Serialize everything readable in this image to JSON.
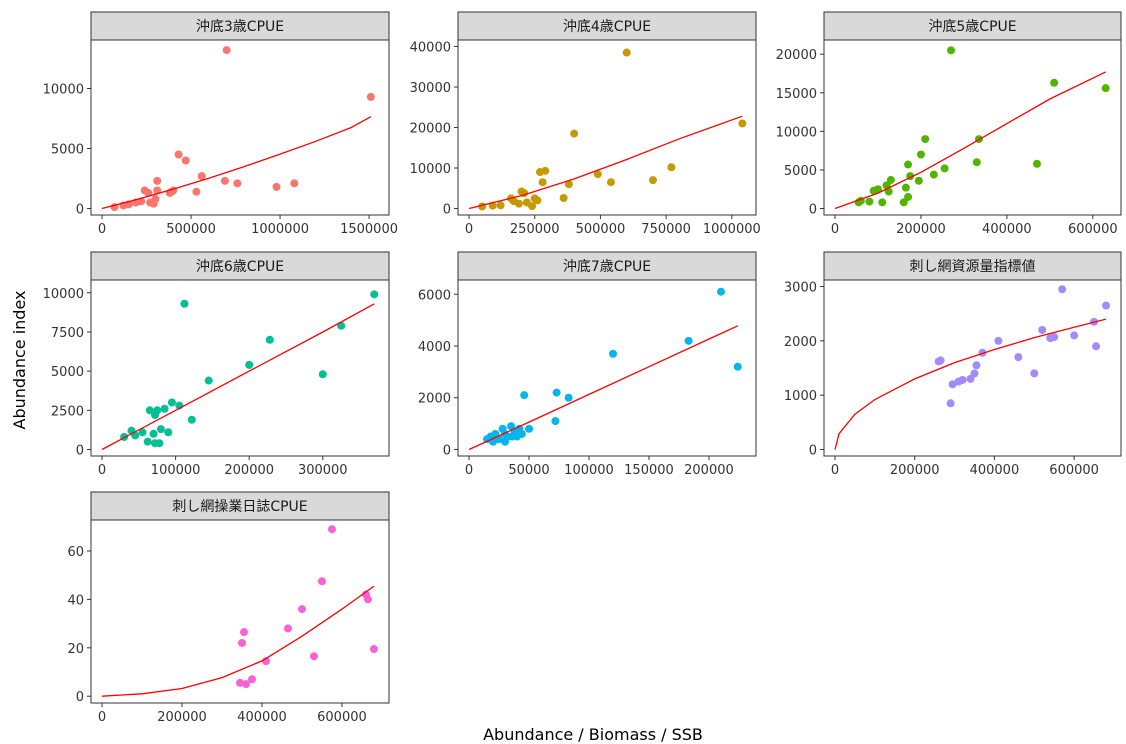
{
  "figure": {
    "xlabel": "Abundance / Biomass / SSB",
    "ylabel": "Abundance index"
  },
  "chart_data": [
    {
      "type": "scatter",
      "title": "沖底3歳CPUE",
      "color": "#F8766D",
      "fit_color": "#FF0000",
      "xlim": [
        0,
        1550000
      ],
      "ylim": [
        0,
        13500
      ],
      "x_ticks": [
        0,
        500000,
        1000000,
        1500000
      ],
      "x_tick_labels": [
        "0",
        "500000",
        "1000000",
        "1500000"
      ],
      "y_ticks": [
        0,
        5000,
        10000
      ],
      "y_tick_labels": [
        "0",
        "5000",
        "10000"
      ],
      "points": [
        [
          70000,
          120
        ],
        [
          120000,
          250
        ],
        [
          150000,
          350
        ],
        [
          190000,
          500
        ],
        [
          220000,
          600
        ],
        [
          240000,
          1500
        ],
        [
          260000,
          1300
        ],
        [
          270000,
          500
        ],
        [
          290000,
          400
        ],
        [
          300000,
          800
        ],
        [
          310000,
          1500
        ],
        [
          310000,
          2300
        ],
        [
          380000,
          1300
        ],
        [
          390000,
          1400
        ],
        [
          400000,
          1500
        ],
        [
          430000,
          4500
        ],
        [
          470000,
          4000
        ],
        [
          530000,
          1400
        ],
        [
          560000,
          2700
        ],
        [
          690000,
          2300
        ],
        [
          700000,
          13200
        ],
        [
          760000,
          2100
        ],
        [
          980000,
          1800
        ],
        [
          1080000,
          2100
        ],
        [
          1510000,
          9300
        ]
      ],
      "fit": [
        [
          0,
          0
        ],
        [
          200000,
          770
        ],
        [
          400000,
          1620
        ],
        [
          600000,
          2520
        ],
        [
          800000,
          3500
        ],
        [
          1000000,
          4530
        ],
        [
          1200000,
          5600
        ],
        [
          1400000,
          6750
        ],
        [
          1510000,
          7650
        ]
      ]
    },
    {
      "type": "scatter",
      "title": "沖底4歳CPUE",
      "color": "#C49A00",
      "fit_color": "#FF0000",
      "xlim": [
        0,
        1050000
      ],
      "ylim": [
        0,
        40000
      ],
      "x_ticks": [
        0,
        250000,
        500000,
        750000,
        1000000
      ],
      "x_tick_labels": [
        "0",
        "250000",
        "500000",
        "750000",
        "1000000"
      ],
      "y_ticks": [
        0,
        10000,
        20000,
        30000,
        40000
      ],
      "y_tick_labels": [
        "0",
        "10000",
        "20000",
        "30000",
        "40000"
      ],
      "points": [
        [
          50000,
          500
        ],
        [
          90000,
          700
        ],
        [
          120000,
          800
        ],
        [
          160000,
          2500
        ],
        [
          170000,
          1800
        ],
        [
          190000,
          1200
        ],
        [
          200000,
          4200
        ],
        [
          210000,
          3800
        ],
        [
          220000,
          1500
        ],
        [
          240000,
          600
        ],
        [
          250000,
          2500
        ],
        [
          260000,
          2000
        ],
        [
          270000,
          9000
        ],
        [
          280000,
          6500
        ],
        [
          290000,
          9300
        ],
        [
          360000,
          2600
        ],
        [
          380000,
          6000
        ],
        [
          400000,
          18500
        ],
        [
          490000,
          8500
        ],
        [
          540000,
          6500
        ],
        [
          600000,
          38500
        ],
        [
          700000,
          7000
        ],
        [
          770000,
          10200
        ],
        [
          1040000,
          21000
        ]
      ],
      "fit": [
        [
          0,
          0
        ],
        [
          200000,
          3200
        ],
        [
          400000,
          7300
        ],
        [
          600000,
          12100
        ],
        [
          800000,
          17200
        ],
        [
          1040000,
          22800
        ]
      ]
    },
    {
      "type": "scatter",
      "title": "沖底5歳CPUE",
      "color": "#53B400",
      "fit_color": "#FF0000",
      "xlim": [
        0,
        640000
      ],
      "ylim": [
        0,
        21000
      ],
      "x_ticks": [
        0,
        200000,
        400000,
        600000
      ],
      "x_tick_labels": [
        "0",
        "200000",
        "400000",
        "600000"
      ],
      "y_ticks": [
        0,
        5000,
        10000,
        15000,
        20000
      ],
      "y_tick_labels": [
        "0",
        "5000",
        "10000",
        "15000",
        "20000"
      ],
      "points": [
        [
          55000,
          800
        ],
        [
          60000,
          1000
        ],
        [
          80000,
          900
        ],
        [
          90000,
          2300
        ],
        [
          100000,
          2500
        ],
        [
          110000,
          800
        ],
        [
          120000,
          3000
        ],
        [
          125000,
          2200
        ],
        [
          130000,
          3700
        ],
        [
          160000,
          800
        ],
        [
          165000,
          2700
        ],
        [
          170000,
          1500
        ],
        [
          170000,
          5700
        ],
        [
          175000,
          4200
        ],
        [
          195000,
          3600
        ],
        [
          200000,
          7000
        ],
        [
          210000,
          9000
        ],
        [
          230000,
          4400
        ],
        [
          255000,
          5200
        ],
        [
          270000,
          20500
        ],
        [
          330000,
          6000
        ],
        [
          335000,
          9000
        ],
        [
          470000,
          5800
        ],
        [
          510000,
          16300
        ],
        [
          630000,
          15600
        ]
      ],
      "fit": [
        [
          0,
          0
        ],
        [
          100000,
          2000
        ],
        [
          200000,
          4700
        ],
        [
          300000,
          7800
        ],
        [
          400000,
          11000
        ],
        [
          500000,
          14200
        ],
        [
          630000,
          17700
        ]
      ]
    },
    {
      "type": "scatter",
      "title": "沖底6歳CPUE",
      "color": "#00C094",
      "fit_color": "#FF0000",
      "xlim": [
        0,
        375000
      ],
      "ylim": [
        0,
        10400
      ],
      "x_ticks": [
        0,
        100000,
        200000,
        300000
      ],
      "x_tick_labels": [
        "0",
        "100000",
        "200000",
        "300000"
      ],
      "y_ticks": [
        0,
        2500,
        5000,
        7500,
        10000
      ],
      "y_tick_labels": [
        "0",
        "2500",
        "5000",
        "7500",
        "10000"
      ],
      "points": [
        [
          30000,
          800
        ],
        [
          40000,
          1200
        ],
        [
          45000,
          900
        ],
        [
          55000,
          1100
        ],
        [
          62000,
          500
        ],
        [
          65000,
          2500
        ],
        [
          70000,
          1000
        ],
        [
          72000,
          400
        ],
        [
          72000,
          2200
        ],
        [
          75000,
          2500
        ],
        [
          78000,
          400
        ],
        [
          80000,
          1300
        ],
        [
          85000,
          2600
        ],
        [
          90000,
          1100
        ],
        [
          95000,
          3000
        ],
        [
          105000,
          2800
        ],
        [
          112000,
          9300
        ],
        [
          122000,
          1900
        ],
        [
          145000,
          4400
        ],
        [
          200000,
          5400
        ],
        [
          228000,
          7000
        ],
        [
          300000,
          4800
        ],
        [
          325000,
          7900
        ],
        [
          370000,
          9900
        ]
      ],
      "fit": [
        [
          0,
          0
        ],
        [
          100000,
          2500
        ],
        [
          200000,
          5000
        ],
        [
          300000,
          7500
        ],
        [
          370000,
          9300
        ]
      ]
    },
    {
      "type": "scatter",
      "title": "沖底7歳CPUE",
      "color": "#00B6EB",
      "fit_color": "#FF0000",
      "xlim": [
        0,
        230000
      ],
      "ylim": [
        0,
        6300
      ],
      "x_ticks": [
        0,
        50000,
        100000,
        150000,
        200000
      ],
      "x_tick_labels": [
        "0",
        "50000",
        "100000",
        "150000",
        "200000"
      ],
      "y_ticks": [
        0,
        2000,
        4000,
        6000
      ],
      "y_tick_labels": [
        "0",
        "2000",
        "4000",
        "6000"
      ],
      "points": [
        [
          15000,
          400
        ],
        [
          18000,
          500
        ],
        [
          20000,
          300
        ],
        [
          22000,
          600
        ],
        [
          25000,
          400
        ],
        [
          28000,
          800
        ],
        [
          30000,
          300
        ],
        [
          30000,
          600
        ],
        [
          32000,
          500
        ],
        [
          35000,
          900
        ],
        [
          36000,
          500
        ],
        [
          38000,
          700
        ],
        [
          40000,
          500
        ],
        [
          42000,
          800
        ],
        [
          44000,
          600
        ],
        [
          46000,
          2100
        ],
        [
          50000,
          800
        ],
        [
          72000,
          1100
        ],
        [
          73000,
          2200
        ],
        [
          83000,
          2000
        ],
        [
          120000,
          3700
        ],
        [
          183000,
          4200
        ],
        [
          210000,
          6100
        ],
        [
          224000,
          3200
        ]
      ],
      "fit": [
        [
          0,
          0
        ],
        [
          50000,
          1060
        ],
        [
          100000,
          2130
        ],
        [
          150000,
          3200
        ],
        [
          200000,
          4270
        ],
        [
          224000,
          4780
        ]
      ]
    },
    {
      "type": "scatter",
      "title": "刺し網資源量指標値",
      "color": "#A58AFF",
      "fit_color": "#FF0000",
      "xlim": [
        0,
        690000
      ],
      "ylim": [
        0,
        3000
      ],
      "x_ticks": [
        0,
        200000,
        400000,
        600000
      ],
      "x_tick_labels": [
        "0",
        "200000",
        "400000",
        "600000"
      ],
      "y_ticks": [
        0,
        1000,
        2000,
        3000
      ],
      "y_tick_labels": [
        "0",
        "1000",
        "2000",
        "3000"
      ],
      "points": [
        [
          260000,
          1620
        ],
        [
          265000,
          1640
        ],
        [
          290000,
          850
        ],
        [
          295000,
          1200
        ],
        [
          310000,
          1250
        ],
        [
          320000,
          1280
        ],
        [
          340000,
          1300
        ],
        [
          350000,
          1400
        ],
        [
          355000,
          1550
        ],
        [
          370000,
          1780
        ],
        [
          410000,
          2000
        ],
        [
          460000,
          1700
        ],
        [
          500000,
          1400
        ],
        [
          520000,
          2200
        ],
        [
          540000,
          2050
        ],
        [
          550000,
          2070
        ],
        [
          570000,
          2950
        ],
        [
          600000,
          2100
        ],
        [
          650000,
          2350
        ],
        [
          655000,
          1900
        ],
        [
          680000,
          2650
        ]
      ],
      "fit": [
        [
          0,
          0
        ],
        [
          10000,
          290
        ],
        [
          50000,
          650
        ],
        [
          100000,
          920
        ],
        [
          200000,
          1300
        ],
        [
          300000,
          1600
        ],
        [
          400000,
          1840
        ],
        [
          500000,
          2060
        ],
        [
          600000,
          2250
        ],
        [
          680000,
          2400
        ]
      ]
    },
    {
      "type": "scatter",
      "title": "刺し網操業日誌CPUE",
      "color": "#FB61D7",
      "fit_color": "#FF0000",
      "xlim": [
        0,
        690000
      ],
      "ylim": [
        0,
        70
      ],
      "x_ticks": [
        0,
        200000,
        400000,
        600000
      ],
      "x_tick_labels": [
        "0",
        "200000",
        "400000",
        "600000"
      ],
      "y_ticks": [
        0,
        20,
        40,
        60
      ],
      "y_tick_labels": [
        "0",
        "20",
        "40",
        "60"
      ],
      "points": [
        [
          345000,
          5.5
        ],
        [
          350000,
          22
        ],
        [
          355000,
          26.5
        ],
        [
          360000,
          5
        ],
        [
          375000,
          7
        ],
        [
          410000,
          14.5
        ],
        [
          465000,
          28
        ],
        [
          500000,
          36
        ],
        [
          530000,
          16.5
        ],
        [
          550000,
          47.5
        ],
        [
          575000,
          69
        ],
        [
          660000,
          42
        ],
        [
          665000,
          40
        ],
        [
          680000,
          19.5
        ]
      ],
      "fit": [
        [
          0,
          0
        ],
        [
          100000,
          1
        ],
        [
          200000,
          3.2
        ],
        [
          300000,
          7.7
        ],
        [
          400000,
          14.6
        ],
        [
          500000,
          24.8
        ],
        [
          600000,
          36
        ],
        [
          680000,
          45.5
        ]
      ]
    }
  ]
}
